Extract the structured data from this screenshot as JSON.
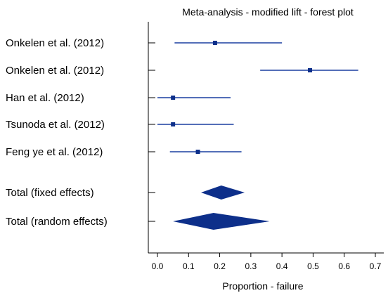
{
  "chart_data": {
    "type": "forest",
    "title": "Meta-analysis - modified lift - forest plot",
    "xlabel": "Proportion - failure",
    "xlim": [
      0.0,
      0.7
    ],
    "x_ticks": [
      "0.0",
      "0.1",
      "0.2",
      "0.3",
      "0.4",
      "0.5",
      "0.6",
      "0.7"
    ],
    "studies": [
      {
        "label": "Onkelen et al. (2012)",
        "estimate": 0.185,
        "ci_low": 0.055,
        "ci_high": 0.4
      },
      {
        "label": "Onkelen et al. (2012)",
        "estimate": 0.49,
        "ci_low": 0.33,
        "ci_high": 0.645
      },
      {
        "label": "Han et al. (2012)",
        "estimate": 0.05,
        "ci_low": 0.0,
        "ci_high": 0.235
      },
      {
        "label": "Tsunoda et al. (2012)",
        "estimate": 0.05,
        "ci_low": 0.0,
        "ci_high": 0.245
      },
      {
        "label": "Feng ye et al. (2012)",
        "estimate": 0.13,
        "ci_low": 0.04,
        "ci_high": 0.27
      }
    ],
    "pooled": [
      {
        "label": "Total (fixed effects)",
        "estimate": 0.205,
        "ci_low": 0.14,
        "ci_high": 0.28
      },
      {
        "label": "Total (random effects)",
        "estimate": 0.18,
        "ci_low": 0.05,
        "ci_high": 0.36
      }
    ],
    "colors": {
      "marker": "#0d2f8a",
      "ci_line": "#1a3ea0",
      "axis": "#000000",
      "text": "#000000"
    }
  }
}
